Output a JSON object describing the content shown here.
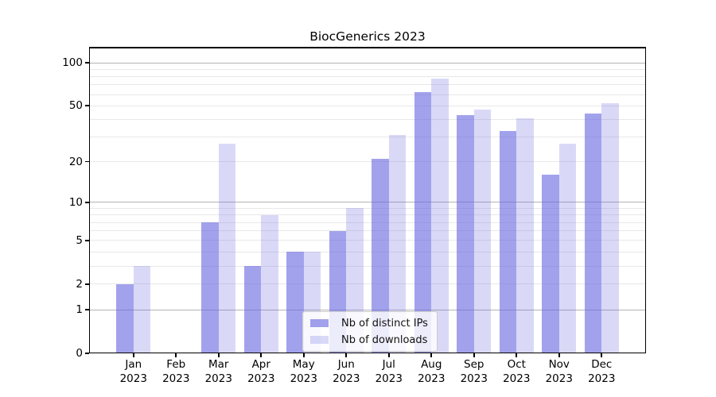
{
  "chart_data": {
    "type": "bar",
    "title": "BiocGenerics 2023",
    "year_label": "2023",
    "categories": [
      "Jan",
      "Feb",
      "Mar",
      "Apr",
      "May",
      "Jun",
      "Jul",
      "Aug",
      "Sep",
      "Oct",
      "Nov",
      "Dec"
    ],
    "series": [
      {
        "name": "Nb of distinct IPs",
        "color": "rgba(105,105,225,0.62)",
        "values": [
          2,
          0,
          7,
          3,
          4,
          6,
          21,
          62,
          43,
          33,
          16,
          44
        ]
      },
      {
        "name": "Nb of downloads",
        "color": "rgba(105,105,225,0.25)",
        "values": [
          3,
          0,
          27,
          8,
          4,
          9,
          31,
          78,
          47,
          41,
          27,
          52
        ]
      }
    ],
    "xlabel": "",
    "ylabel": "",
    "yticks": [
      100,
      50,
      20,
      10,
      5,
      2,
      1,
      0
    ],
    "scale": "log1p",
    "ylim": [
      0,
      130
    ],
    "grid": "on",
    "gridline_major_values": [
      1,
      10,
      100
    ],
    "gridline_minor_values": [
      2,
      3,
      4,
      5,
      6,
      7,
      8,
      9,
      20,
      30,
      40,
      50,
      60,
      70,
      80,
      90
    ],
    "legend_position": "lower center"
  },
  "colors": {
    "background": "#ffffff",
    "bar_distinct_ips": "rgba(105,105,225,0.62)",
    "bar_downloads": "rgba(105,105,225,0.25)",
    "grid_major": "#b3b3b3",
    "grid_minor": "#e8e8e8",
    "spine": "#000000",
    "text": "#000000",
    "legend_border": "#cccccc"
  }
}
